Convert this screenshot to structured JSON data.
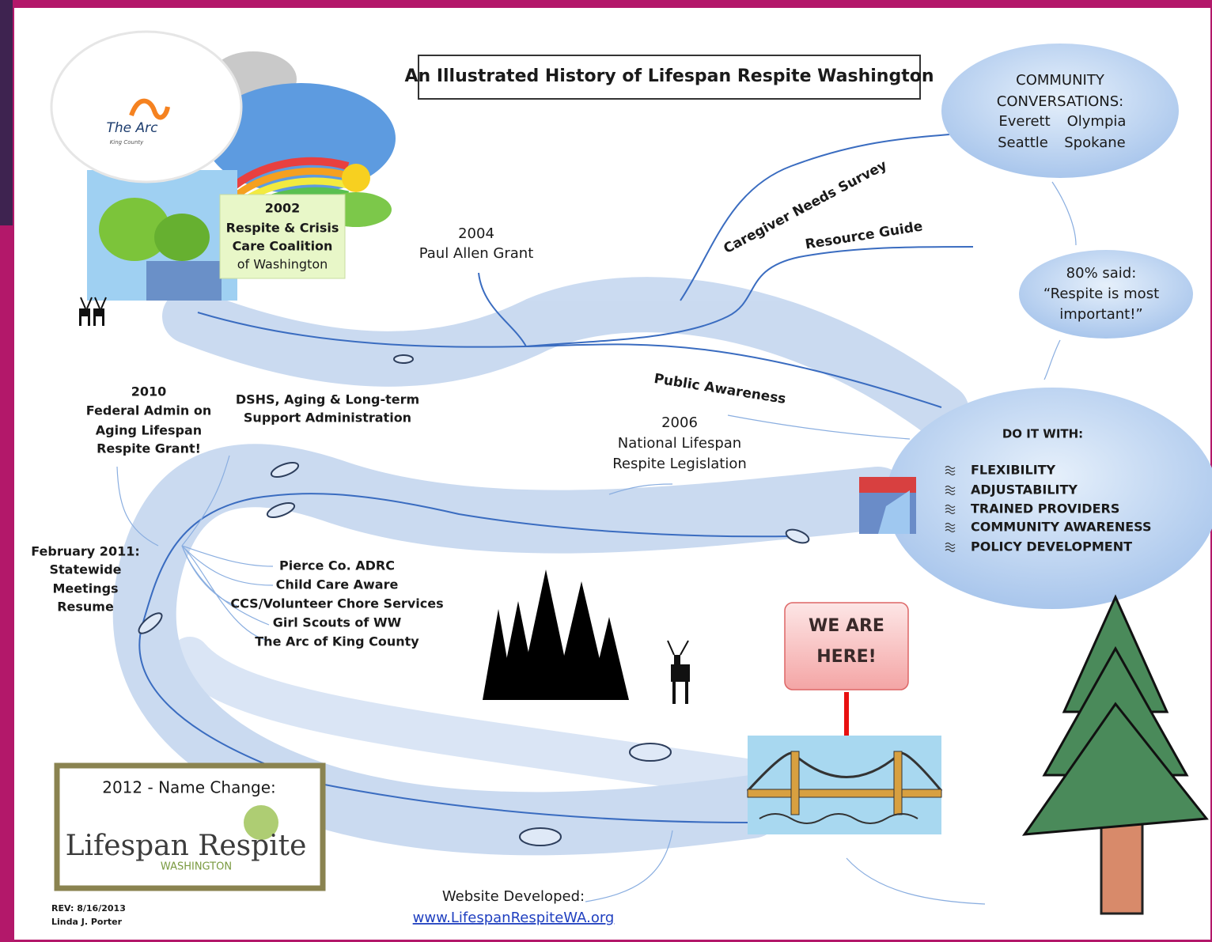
{
  "title": "An Illustrated History of Lifespan Respite Washington",
  "arc_logo": {
    "name": "The Arc",
    "subtitle": "King County"
  },
  "coalition_2002": {
    "year": "2002",
    "lines": [
      "Respite & Crisis",
      "Care Coalition",
      "of Washington"
    ]
  },
  "grant_2004": {
    "year": "2004",
    "name": "Paul Allen Grant"
  },
  "survey": "Caregiver Needs Survey",
  "resource_guide": "Resource Guide",
  "community": {
    "heading": [
      "COMMUNITY",
      "CONVERSATIONS:"
    ],
    "cities": [
      "Everett",
      "Olympia",
      "Seattle",
      "Spokane"
    ]
  },
  "survey_quote": [
    "80% said:",
    "“Respite is most",
    "important!”"
  ],
  "public_awareness": "Public Awareness",
  "legislation_2006": {
    "year": "2006",
    "lines": [
      "National Lifespan",
      "Respite Legislation"
    ]
  },
  "do_it_with": {
    "heading": "DO IT WITH:",
    "items": [
      "FLEXIBILITY",
      "ADJUSTABILITY",
      "TRAINED PROVIDERS",
      "COMMUNITY AWARENESS",
      "POLICY DEVELOPMENT"
    ]
  },
  "grant_2010": {
    "year": "2010",
    "lines": [
      "Federal Admin on",
      "Aging Lifespan",
      "Respite Grant!"
    ]
  },
  "dshs": [
    "DSHS, Aging & Long-term",
    "Support Administration"
  ],
  "meetings_2011": [
    "February 2011:",
    "Statewide",
    "Meetings",
    "Resume"
  ],
  "partners": [
    "Pierce Co. ADRC",
    "Child Care Aware",
    "CCS/Volunteer Chore Services",
    "Girl Scouts of WW",
    "The Arc of King County"
  ],
  "you_are_here": [
    "WE ARE",
    "HERE!"
  ],
  "name_change_2012": {
    "heading": "2012 - Name Change:",
    "logo": "Lifespan Respite",
    "logo_subtitle": "WASHINGTON"
  },
  "website": {
    "label": "Website Developed:",
    "url": "www.LifespanRespiteWA.org"
  },
  "footer": [
    "REV: 8/16/2013",
    "Linda J. Porter"
  ]
}
